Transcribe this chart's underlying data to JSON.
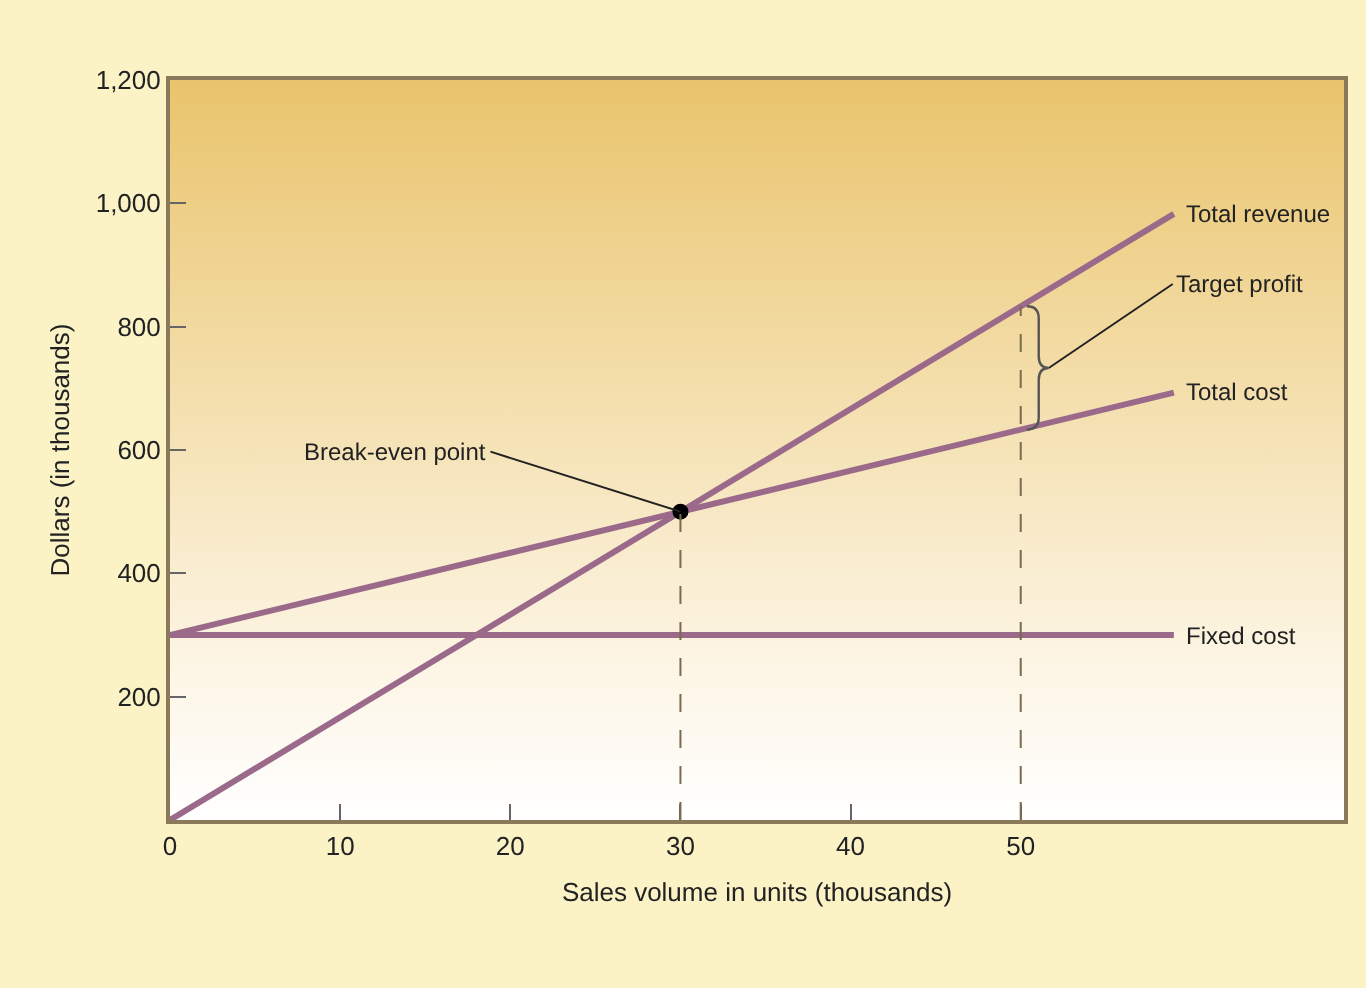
{
  "chart_data": {
    "type": "line",
    "xlabel": "Sales volume in units (thousands)",
    "ylabel": "Dollars (in thousands)",
    "xlim": [
      0,
      69
    ],
    "xticks": [
      0,
      10,
      20,
      30,
      40,
      50
    ],
    "ylim": [
      0,
      1200
    ],
    "yticks": [
      200,
      400,
      600,
      800,
      {
        "value": 1000,
        "label": "1,000"
      },
      {
        "value": 1200,
        "label": "1,200"
      }
    ],
    "series": [
      {
        "name": "Total revenue",
        "color": "#9b6a8a",
        "x": [
          0,
          59
        ],
        "values": [
          0,
          983
        ]
      },
      {
        "name": "Total cost",
        "color": "#9b6a8a",
        "x": [
          0,
          59
        ],
        "values": [
          300,
          693
        ]
      },
      {
        "name": "Fixed cost",
        "color": "#9b6a8a",
        "x": [
          0,
          59
        ],
        "values": [
          300,
          300
        ]
      },
      {
        "type": "scatter",
        "color": "#000000",
        "x": [
          30
        ],
        "values": [
          500
        ],
        "marker": "circle"
      }
    ],
    "ref_lines": [
      {
        "axis": "x",
        "value": 30,
        "line_style": "dashed",
        "color": "#7a6a50"
      },
      {
        "axis": "x",
        "value": 50,
        "line_style": "dashed",
        "color": "#7a6a50"
      }
    ],
    "annotations": [
      {
        "text": "Break-even point",
        "x": 30,
        "y": 500
      },
      "Target profit"
    ],
    "grid": false,
    "legend": false,
    "marker": "none",
    "line_style": "solid"
  }
}
